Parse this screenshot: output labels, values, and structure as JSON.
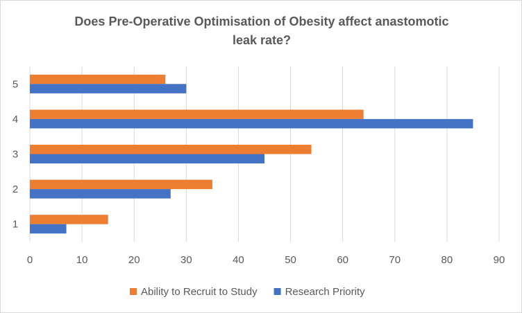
{
  "chart_data": {
    "type": "bar",
    "orientation": "horizontal",
    "title": "Does Pre-Operative Optimisation  of Obesity affect anastomotic leak rate?",
    "categories": [
      "1",
      "2",
      "3",
      "4",
      "5"
    ],
    "series": [
      {
        "name": "Ability to Recruit to Study",
        "color": "#ed7d31",
        "values": [
          15,
          35,
          54,
          64,
          26
        ]
      },
      {
        "name": "Research Priority",
        "color": "#4472c4",
        "values": [
          7,
          27,
          45,
          85,
          30
        ]
      }
    ],
    "xlim": [
      0,
      90
    ],
    "xticks": [
      "0",
      "10",
      "20",
      "30",
      "40",
      "50",
      "60",
      "70",
      "80",
      "90"
    ],
    "grid": true,
    "legend": "bottom"
  }
}
